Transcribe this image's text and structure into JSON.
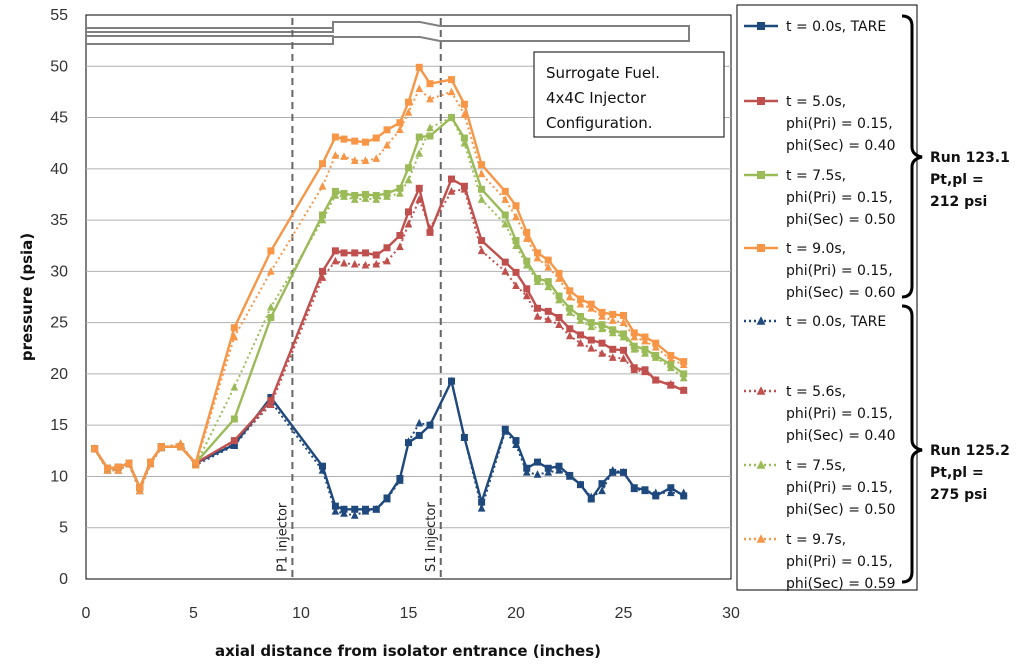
{
  "chart_data": {
    "type": "line",
    "title": "",
    "xlabel": "axial distance from isolator entrance (inches)",
    "ylabel": "pressure (psia)",
    "xlim": [
      0,
      30
    ],
    "ylim": [
      0,
      55
    ],
    "xticks": [
      "0",
      "5",
      "10",
      "15",
      "20",
      "25",
      "30"
    ],
    "yticks": [
      "0",
      "5",
      "10",
      "15",
      "20",
      "25",
      "30",
      "35",
      "40",
      "45",
      "50",
      "55"
    ],
    "grid": "horizontal",
    "legend_position": "right",
    "annotation": [
      "Surrogate Fuel.",
      "4x4C  Injector",
      "Configuration."
    ],
    "vertical_lines": [
      {
        "x": 9.6,
        "label": "P1 injector"
      },
      {
        "x": 16.5,
        "label": "S1 injector"
      }
    ],
    "groups": [
      {
        "lines": [
          "Run 123.1",
          "Pt,pl  =",
          "212 psi"
        ]
      },
      {
        "lines": [
          "Run 125.2",
          "Pt,pl =",
          "275 psi"
        ]
      }
    ],
    "series": [
      {
        "label": [
          "t = 0.0s, TARE"
        ],
        "color": "#1f497d",
        "marker": "square",
        "dash": false,
        "x": [
          0.4,
          1.0,
          1.5,
          2.0,
          2.5,
          3.0,
          3.5,
          4.4,
          5.1,
          6.9,
          8.6,
          11.0,
          11.6,
          12.0,
          12.5,
          13.0,
          13.5,
          14.0,
          14.6,
          15.0,
          15.5,
          16.0,
          17.0,
          17.6,
          18.4,
          19.5,
          20.0,
          20.5,
          21.0,
          21.5,
          22.0,
          22.5,
          23.0,
          23.5,
          24.0,
          24.5,
          25.0,
          25.5,
          26.0,
          26.5,
          27.2,
          27.8
        ],
        "y": [
          12.7,
          10.8,
          10.9,
          11.3,
          8.9,
          11.4,
          12.9,
          12.9,
          11.3,
          13.1,
          17.7,
          11.0,
          7.1,
          6.8,
          6.8,
          6.8,
          6.8,
          7.9,
          9.8,
          13.3,
          14.0,
          15.0,
          19.3,
          13.8,
          7.5,
          14.6,
          13.5,
          10.8,
          11.4,
          10.8,
          11.0,
          10.1,
          9.2,
          7.8,
          9.3,
          10.4,
          10.4,
          8.9,
          8.7,
          8.1,
          8.9,
          8.1
        ]
      },
      {
        "label": [
          "t = 5.0s,",
          "phi(Pri) = 0.15,",
          "phi(Sec) = 0.40"
        ],
        "color": "#c0504d",
        "marker": "square",
        "dash": false,
        "x": [
          0.4,
          1.0,
          1.5,
          2.0,
          2.5,
          3.0,
          3.5,
          4.4,
          5.1,
          6.9,
          8.6,
          11.0,
          11.6,
          12.0,
          12.5,
          13.0,
          13.5,
          14.0,
          14.6,
          15.0,
          15.5,
          16.0,
          17.0,
          17.6,
          18.4,
          19.5,
          20.0,
          20.5,
          21.0,
          21.5,
          22.0,
          22.5,
          23.0,
          23.5,
          24.0,
          24.5,
          25.0,
          25.5,
          26.0,
          26.5,
          27.2,
          27.8
        ],
        "y": [
          12.7,
          10.8,
          10.9,
          11.3,
          8.9,
          11.4,
          12.9,
          12.9,
          11.3,
          13.5,
          17.4,
          30.0,
          32.0,
          31.8,
          31.8,
          31.8,
          31.6,
          32.3,
          33.5,
          35.8,
          38.1,
          33.8,
          39.0,
          38.3,
          33.0,
          30.9,
          29.9,
          28.3,
          26.4,
          26.1,
          25.5,
          24.4,
          23.8,
          23.3,
          23.0,
          22.4,
          22.3,
          20.6,
          20.4,
          19.4,
          18.9,
          18.4
        ]
      },
      {
        "label": [
          "t = 7.5s,",
          "phi(Pri) = 0.15,",
          "phi(Sec) = 0.50"
        ],
        "color": "#9bbb59",
        "marker": "square",
        "dash": false,
        "x": [
          0.4,
          1.0,
          1.5,
          2.0,
          2.5,
          3.0,
          3.5,
          4.4,
          5.1,
          6.9,
          8.6,
          11.0,
          11.6,
          12.0,
          12.5,
          13.0,
          13.5,
          14.0,
          14.6,
          15.0,
          15.5,
          16.0,
          17.0,
          17.6,
          18.4,
          19.5,
          20.0,
          20.5,
          21.0,
          21.5,
          22.0,
          22.5,
          23.0,
          23.5,
          24.0,
          24.5,
          25.0,
          25.5,
          26.0,
          26.5,
          27.2,
          27.8
        ],
        "y": [
          12.7,
          10.8,
          10.9,
          11.3,
          8.9,
          11.4,
          12.9,
          12.9,
          11.3,
          15.6,
          25.5,
          35.5,
          37.8,
          37.6,
          37.4,
          37.5,
          37.4,
          37.6,
          38.1,
          40.1,
          43.1,
          43.2,
          45.0,
          43.0,
          38.0,
          35.5,
          33.0,
          31.0,
          29.3,
          29.0,
          27.6,
          26.4,
          25.6,
          25.0,
          24.8,
          24.3,
          23.9,
          22.7,
          22.4,
          21.8,
          20.9,
          20.0
        ]
      },
      {
        "label": [
          "t = 9.0s,",
          "phi(Pri) = 0.15,",
          "phi(Sec) = 0.60"
        ],
        "color": "#f79646",
        "marker": "square",
        "dash": false,
        "x": [
          0.4,
          1.0,
          1.5,
          2.0,
          2.5,
          3.0,
          3.5,
          4.4,
          5.1,
          6.9,
          8.6,
          11.0,
          11.6,
          12.0,
          12.5,
          13.0,
          13.5,
          14.0,
          14.6,
          15.0,
          15.5,
          16.0,
          17.0,
          17.6,
          18.4,
          19.5,
          20.0,
          20.5,
          21.0,
          21.5,
          22.0,
          22.5,
          23.0,
          23.5,
          24.0,
          24.5,
          25.0,
          25.5,
          26.0,
          26.5,
          27.2,
          27.8
        ],
        "y": [
          12.7,
          10.8,
          10.9,
          11.3,
          8.9,
          11.4,
          12.9,
          12.9,
          11.3,
          24.5,
          32.0,
          40.5,
          43.1,
          42.9,
          42.7,
          42.6,
          43.0,
          43.8,
          44.5,
          46.5,
          49.9,
          48.3,
          48.7,
          46.3,
          40.4,
          37.8,
          36.4,
          33.8,
          31.8,
          31.1,
          29.8,
          28.1,
          27.3,
          26.8,
          26.0,
          25.8,
          25.7,
          24.0,
          23.6,
          23.0,
          21.8,
          21.2
        ]
      },
      {
        "label": [
          "t = 0.0s, TARE"
        ],
        "color": "#1f497d",
        "marker": "triangle",
        "dash": true,
        "x": [
          0.4,
          1.0,
          1.5,
          2.0,
          2.5,
          3.0,
          3.5,
          4.4,
          5.1,
          6.9,
          8.6,
          11.0,
          11.6,
          12.0,
          12.5,
          13.0,
          13.5,
          14.0,
          14.6,
          15.0,
          15.5,
          16.0,
          17.0,
          17.6,
          18.4,
          19.5,
          20.0,
          20.5,
          21.0,
          21.5,
          22.0,
          22.5,
          23.0,
          23.5,
          24.0,
          24.5,
          25.0,
          25.5,
          26.0,
          26.5,
          27.2,
          27.8
        ],
        "y": [
          12.7,
          10.6,
          10.6,
          11.2,
          8.6,
          11.2,
          12.8,
          13.2,
          11.1,
          13.0,
          17.3,
          10.6,
          6.6,
          6.4,
          6.2,
          6.6,
          6.8,
          7.8,
          9.6,
          13.4,
          15.2,
          15.0,
          19.3,
          13.8,
          6.9,
          14.4,
          13.1,
          10.4,
          10.2,
          10.4,
          10.6,
          10.0,
          9.2,
          8.0,
          8.6,
          10.6,
          10.4,
          8.8,
          8.6,
          8.4,
          8.4,
          8.4
        ]
      },
      {
        "label": [
          "t = 5.6s,",
          "phi(Pri) = 0.15,",
          "phi(Sec) = 0.40"
        ],
        "color": "#c0504d",
        "marker": "triangle",
        "dash": true,
        "x": [
          0.4,
          1.0,
          1.5,
          2.0,
          2.5,
          3.0,
          3.5,
          4.4,
          5.1,
          6.9,
          8.6,
          11.0,
          11.6,
          12.0,
          12.5,
          13.0,
          13.5,
          14.0,
          14.6,
          15.0,
          15.5,
          16.0,
          17.0,
          17.6,
          18.4,
          19.5,
          20.0,
          20.5,
          21.0,
          21.5,
          22.0,
          22.5,
          23.0,
          23.5,
          24.0,
          24.5,
          25.0,
          25.5,
          26.0,
          26.5,
          27.2,
          27.8
        ],
        "y": [
          12.7,
          10.6,
          10.6,
          11.2,
          8.6,
          11.2,
          12.8,
          13.2,
          11.1,
          13.3,
          17.0,
          29.4,
          31.0,
          30.8,
          30.7,
          30.6,
          30.7,
          31.0,
          32.4,
          34.6,
          37.0,
          34.2,
          37.8,
          38.0,
          32.0,
          30.0,
          28.6,
          27.6,
          25.6,
          25.3,
          24.8,
          23.7,
          23.0,
          22.5,
          22.0,
          21.6,
          21.5,
          20.4,
          20.2,
          19.4,
          19.0,
          18.4
        ]
      },
      {
        "label": [
          "t = 7.5s,",
          "phi(Pri) = 0.15,",
          "phi(Sec) = 0.50"
        ],
        "color": "#9bbb59",
        "marker": "triangle",
        "dash": true,
        "x": [
          0.4,
          1.0,
          1.5,
          2.0,
          2.5,
          3.0,
          3.5,
          4.4,
          5.1,
          6.9,
          8.6,
          11.0,
          11.6,
          12.0,
          12.5,
          13.0,
          13.5,
          14.0,
          14.6,
          15.0,
          15.5,
          16.0,
          17.0,
          17.6,
          18.4,
          19.5,
          20.0,
          20.5,
          21.0,
          21.5,
          22.0,
          22.5,
          23.0,
          23.5,
          24.0,
          24.5,
          25.0,
          25.5,
          26.0,
          26.5,
          27.2,
          27.8
        ],
        "y": [
          12.7,
          10.6,
          10.6,
          11.2,
          8.6,
          11.2,
          12.8,
          13.2,
          11.1,
          18.7,
          26.5,
          35.0,
          37.4,
          37.3,
          37.0,
          37.1,
          37.0,
          37.3,
          37.6,
          38.9,
          41.5,
          44.0,
          45.0,
          42.5,
          37.0,
          34.6,
          32.5,
          30.6,
          29.0,
          28.5,
          27.2,
          26.0,
          25.2,
          24.6,
          24.4,
          24.0,
          23.6,
          22.4,
          22.0,
          21.6,
          20.6,
          19.6
        ]
      },
      {
        "label": [
          "t = 9.7s,",
          "phi(Pri) = 0.15,",
          "phi(Sec) = 0.59"
        ],
        "color": "#f79646",
        "marker": "triangle",
        "dash": true,
        "x": [
          0.4,
          1.0,
          1.5,
          2.0,
          2.5,
          3.0,
          3.5,
          4.4,
          5.1,
          6.9,
          8.6,
          11.0,
          11.6,
          12.0,
          12.5,
          13.0,
          13.5,
          14.0,
          14.6,
          15.0,
          15.5,
          16.0,
          17.0,
          17.6,
          18.4,
          19.5,
          20.0,
          20.5,
          21.0,
          21.5,
          22.0,
          22.5,
          23.0,
          23.5,
          24.0,
          24.5,
          25.0,
          25.5,
          26.0,
          26.5,
          27.2,
          27.8
        ],
        "y": [
          12.7,
          10.6,
          10.6,
          11.2,
          8.6,
          11.2,
          12.8,
          13.2,
          11.1,
          23.6,
          30.0,
          38.3,
          41.3,
          41.2,
          40.8,
          40.8,
          41.0,
          42.3,
          43.8,
          45.5,
          47.8,
          46.8,
          47.5,
          45.3,
          39.5,
          37.0,
          35.3,
          33.2,
          31.3,
          30.4,
          29.3,
          27.5,
          26.8,
          26.4,
          25.6,
          25.2,
          25.0,
          23.6,
          23.2,
          22.6,
          21.4,
          20.9
        ]
      }
    ]
  }
}
